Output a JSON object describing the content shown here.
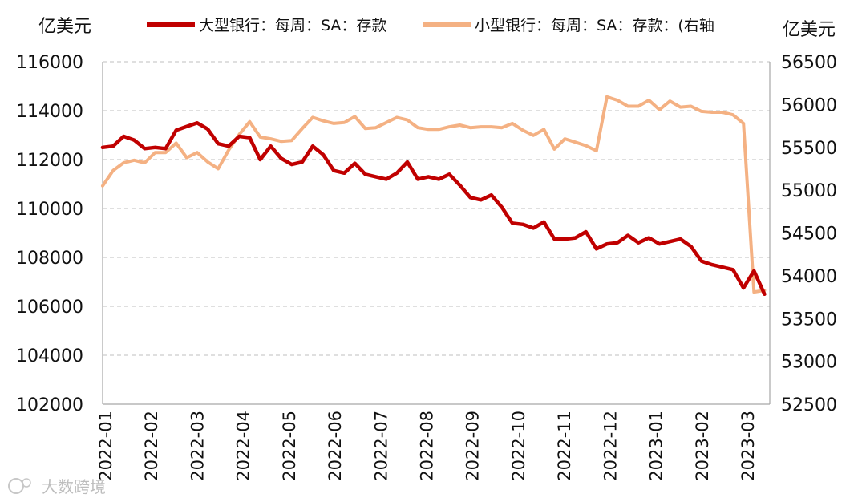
{
  "chart_data": {
    "type": "line",
    "left_unit": "亿美元",
    "right_unit": "亿美元",
    "left_axis": {
      "range": [
        102000,
        116000
      ],
      "ticks": [
        "116000",
        "114000",
        "112000",
        "110000",
        "108000",
        "106000",
        "104000",
        "102000"
      ],
      "tick_values": [
        116000,
        114000,
        112000,
        110000,
        108000,
        106000,
        104000,
        102000
      ]
    },
    "right_axis": {
      "range": [
        52500,
        56500
      ],
      "ticks": [
        "56500",
        "56000",
        "55500",
        "55000",
        "54500",
        "54000",
        "53500",
        "53000",
        "52500"
      ],
      "tick_values": [
        56500,
        56000,
        55500,
        55000,
        54500,
        54000,
        53500,
        53000,
        52500
      ]
    },
    "x_tick_labels": [
      "2022-01",
      "2022-02",
      "2022-03",
      "2022-04",
      "2022-05",
      "2022-06",
      "2022-07",
      "2022-08",
      "2022-09",
      "2022-10",
      "2022-11",
      "2022-12",
      "2023-01",
      "2023-02",
      "2023-03"
    ],
    "x_range_weeks": 63,
    "gridlines": true,
    "legend_position": "top",
    "series": [
      {
        "name": "大型银行：每周：SA：存款",
        "axis": "left",
        "color": "#c00000",
        "values": [
          112500,
          112550,
          112950,
          112800,
          112450,
          112500,
          112450,
          113200,
          113350,
          113500,
          113250,
          112650,
          112550,
          112950,
          112900,
          112000,
          112550,
          112050,
          111800,
          111900,
          112550,
          112200,
          111550,
          111450,
          111850,
          111400,
          111300,
          111200,
          111450,
          111900,
          111200,
          111300,
          111200,
          111400,
          110950,
          110450,
          110350,
          110550,
          110050,
          109400,
          109350,
          109200,
          109450,
          108750,
          108750,
          108800,
          109050,
          108350,
          108550,
          108600,
          108900,
          108600,
          108800,
          108550,
          108650,
          108750,
          108450,
          107850,
          107700,
          107600,
          107500,
          106750,
          107450,
          106500
        ]
      },
      {
        "name": "小型银行：每周：SA：存款：(右轴",
        "axis": "right",
        "color": "#f4b183",
        "values": [
          55050,
          55230,
          55320,
          55350,
          55320,
          55440,
          55440,
          55550,
          55380,
          55440,
          55330,
          55250,
          55470,
          55650,
          55800,
          55620,
          55600,
          55570,
          55580,
          55720,
          55850,
          55810,
          55780,
          55790,
          55860,
          55720,
          55730,
          55790,
          55850,
          55820,
          55730,
          55710,
          55710,
          55740,
          55760,
          55730,
          55740,
          55740,
          55730,
          55780,
          55700,
          55640,
          55710,
          55480,
          55600,
          55560,
          55520,
          55460,
          56090,
          56050,
          55980,
          55980,
          56050,
          55940,
          56040,
          55970,
          55980,
          55920,
          55910,
          55910,
          55880,
          55780,
          53810,
          53830
        ]
      }
    ],
    "legend": [
      {
        "label": "大型银行：每周：SA：存款",
        "color": "#c00000"
      },
      {
        "label": "小型银行：每周：SA：存款：(右轴",
        "color": "#f4b183"
      }
    ]
  },
  "watermark": {
    "text": "大数跨境",
    "icon": "logo-icon"
  }
}
